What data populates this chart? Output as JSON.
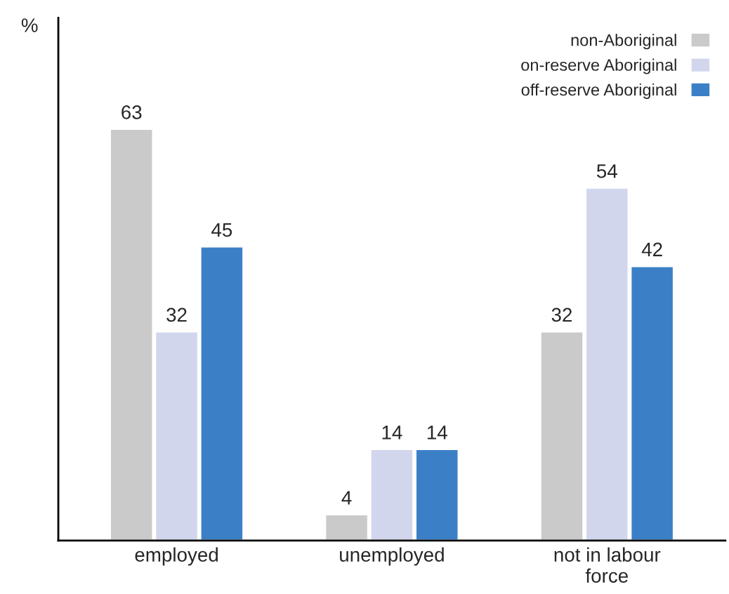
{
  "chart_data": {
    "type": "bar",
    "ylabel": "%",
    "categories": [
      "employed",
      "unemployed",
      "not in labour\nforce"
    ],
    "series": [
      {
        "name": "non-Aboriginal",
        "color": "#cacaca",
        "values": [
          63,
          4,
          32
        ]
      },
      {
        "name": "on-reserve Aboriginal",
        "color": "#d2d6ed",
        "values": [
          32,
          14,
          54
        ]
      },
      {
        "name": "off-reserve Aboriginal",
        "color": "#3b80c7",
        "values": [
          45,
          14,
          42
        ]
      }
    ],
    "ylim": [
      0,
      80
    ],
    "tick_labels": "x",
    "data_labels": true,
    "legend": "top right",
    "grid": false
  }
}
